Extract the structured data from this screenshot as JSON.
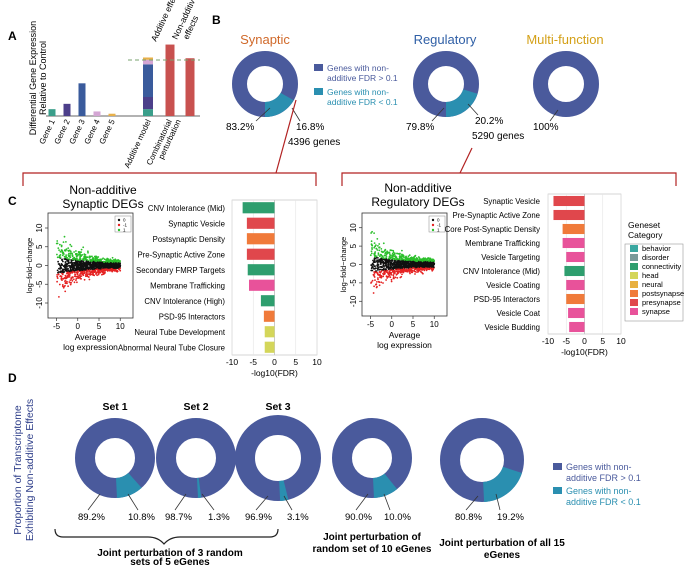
{
  "panel_letters": {
    "a": "A",
    "b": "B",
    "c": "C",
    "d": "D"
  },
  "colors": {
    "dark_blue": "#4a5a9c",
    "teal": "#2a8fb0",
    "green": "#63b37f",
    "red": "#e0474c",
    "orange": "#f07a3a",
    "pink": "#e8529a",
    "dark_red": "#b7474d",
    "yellow_green": "#c7d85a",
    "bracket_red": "#b22222",
    "synaptic_orange": "#d0692a",
    "regulatory_blue": "#2f5fa6",
    "multifunction_gold": "#d4a017"
  },
  "legend_b": {
    "item1": "Genes with non-additive FDR > 0.1",
    "item2": "Genes with non-additive FDR < 0.1"
  },
  "legend_d": {
    "item1": "Genes with non-additive FDR > 0.1",
    "item2": "Genes with non-additive FDR < 0.1"
  },
  "ma_legend": {
    "item0": "0",
    "item_c_neg": "-1",
    "item1": "1"
  },
  "panel_c": {
    "synaptic_title_1": "Non-additive",
    "synaptic_title_2": "Synaptic DEGs",
    "regulatory_title_1": "Non-additive",
    "regulatory_title_2": "Regulatory DEGs",
    "ma_ylabel": "log−fold−change",
    "ma_xlabel_1": "Average",
    "ma_xlabel_2": "log expression",
    "bar_xlabel": "-log10(FDR)",
    "geneset_title_1": "Geneset",
    "geneset_title_2": "Category"
  },
  "panel_d": {
    "ylabel_1": "Proportion of Transcriptome",
    "ylabel_2": "Exhibiting Non-additive Effects",
    "set1": "Set 1",
    "set2": "Set 2",
    "set3": "Set 3",
    "caption1_1": "Joint perturbation of 3 random",
    "caption1_2": "sets of 5 eGenes",
    "caption2_1": "Joint perturbation of",
    "caption2_2": "random set of 10 eGenes",
    "caption3_1": "Joint perturbation of all 15",
    "caption3_2": "eGenes"
  },
  "chart_data": [
    {
      "id": "A",
      "type": "bar",
      "ylabel": "Differential Gene Expression Relative to Control",
      "categories": [
        "Gene 1",
        "Gene 2",
        "Gene 3",
        "Gene 4",
        "Gene 5",
        "Additive model",
        "Combinatorial perturbation",
        ""
      ],
      "values": [
        0.9,
        1.6,
        4.3,
        0.6,
        0.3,
        7.6,
        9.4,
        7.6
      ],
      "colors": [
        "#3a9e8a",
        "#4c3f8a",
        "#3a5b9c",
        "#d4a6d4",
        "#e8b04a",
        "#c8514f",
        "#c8514f",
        "#c8514f"
      ],
      "stacked_additive": [
        0.9,
        1.6,
        4.3,
        0.6,
        0.3
      ],
      "top_labels": [
        "Additive effect",
        "Non-additive effects"
      ],
      "ylim": [
        0,
        10
      ]
    },
    {
      "id": "B",
      "type": "pie",
      "donuts": [
        {
          "title": "Synaptic",
          "values": [
            83.2,
            16.8
          ],
          "labels": [
            "83.2%",
            "16.8%"
          ],
          "total": "4396 genes"
        },
        {
          "title": "Regulatory",
          "values": [
            79.8,
            20.2
          ],
          "labels": [
            "79.8%",
            "20.2%"
          ],
          "total": "5290 genes"
        },
        {
          "title": "Multi-function",
          "values": [
            100,
            0
          ],
          "labels": [
            "100%"
          ],
          "total": ""
        }
      ]
    },
    {
      "id": "C-synaptic",
      "type": "bar",
      "orientation": "horizontal",
      "categories": [
        "CNV Intolerance (Mid)",
        "Synaptic Vesicle",
        "Postsynaptic Density",
        "Pre-Synaptic Active Zone",
        "Secondary FMRP Targets",
        "Membrane Trafficking",
        "CNV Intolerance (High)",
        "PSD-95 Interactors",
        "Neural Tube Development",
        "Abnormal Neural Tube Closure"
      ],
      "values": [
        -7.5,
        -6.5,
        -6.5,
        -6.5,
        -6.3,
        -6.0,
        -3.2,
        -2.5,
        -2.3,
        -2.3
      ],
      "category_group": [
        "connectivity",
        "presynapse",
        "postsynapse",
        "presynapse",
        "connectivity",
        "synapse",
        "connectivity",
        "postsynapse",
        "head",
        "head"
      ],
      "xlabel": "-log10(FDR)",
      "xticks": [
        -10,
        -5,
        0,
        5,
        10
      ],
      "xlim": [
        -10,
        10
      ]
    },
    {
      "id": "C-regulatory",
      "type": "bar",
      "orientation": "horizontal",
      "categories": [
        "Synaptic Vesicle",
        "Pre-Synaptic Active Zone",
        "Core Post-Synaptic Density",
        "Membrane Trafficking",
        "Vesicle Targeting",
        "CNV Intolerance (Mid)",
        "Vesicle Coating",
        "PSD-95 Interactors",
        "Vesicle Coat",
        "Vesicle Budding"
      ],
      "values": [
        -8.5,
        -8.5,
        -6.0,
        -6.0,
        -5.0,
        -5.5,
        -5.0,
        -5.0,
        -4.5,
        -4.2
      ],
      "category_group": [
        "presynapse",
        "presynapse",
        "postsynapse",
        "synapse",
        "synapse",
        "connectivity",
        "synapse",
        "postsynapse",
        "synapse",
        "synapse"
      ],
      "xlabel": "-log10(FDR)",
      "xticks": [
        -10,
        -5,
        0,
        5,
        10
      ],
      "xlim": [
        -10,
        10
      ],
      "legend_title": "Geneset Category",
      "legend": [
        {
          "name": "behavior",
          "color": "#3aa7a0"
        },
        {
          "name": "disorder",
          "color": "#7a9a9a"
        },
        {
          "name": "connectivity",
          "color": "#2e9e6e"
        },
        {
          "name": "head",
          "color": "#d4d65a"
        },
        {
          "name": "neural",
          "color": "#e8b040"
        },
        {
          "name": "postsynapse",
          "color": "#f07a3a"
        },
        {
          "name": "presynapse",
          "color": "#e0474c"
        },
        {
          "name": "synapse",
          "color": "#e8529a"
        }
      ]
    },
    {
      "id": "C-ma",
      "type": "scatter",
      "xlabel": "Average log expression",
      "ylabel": "log−fold−change",
      "xticks": [
        -5,
        0,
        5,
        10
      ],
      "yticks": [
        -10,
        -5,
        0,
        5,
        10
      ],
      "xlim": [
        -7,
        13
      ],
      "ylim": [
        -14,
        14
      ]
    },
    {
      "id": "D",
      "type": "pie",
      "donuts": [
        {
          "values": [
            89.2,
            10.8
          ],
          "labels": [
            "89.2%",
            "10.8%"
          ]
        },
        {
          "values": [
            98.7,
            1.3
          ],
          "labels": [
            "98.7%",
            "1.3%"
          ]
        },
        {
          "values": [
            96.9,
            3.1
          ],
          "labels": [
            "96.9%",
            "3.1%"
          ]
        },
        {
          "values": [
            90.0,
            10.0
          ],
          "labels": [
            "90.0%",
            "10.0%"
          ]
        },
        {
          "values": [
            80.8,
            19.2
          ],
          "labels": [
            "80.8%",
            "19.2%"
          ]
        }
      ]
    }
  ]
}
